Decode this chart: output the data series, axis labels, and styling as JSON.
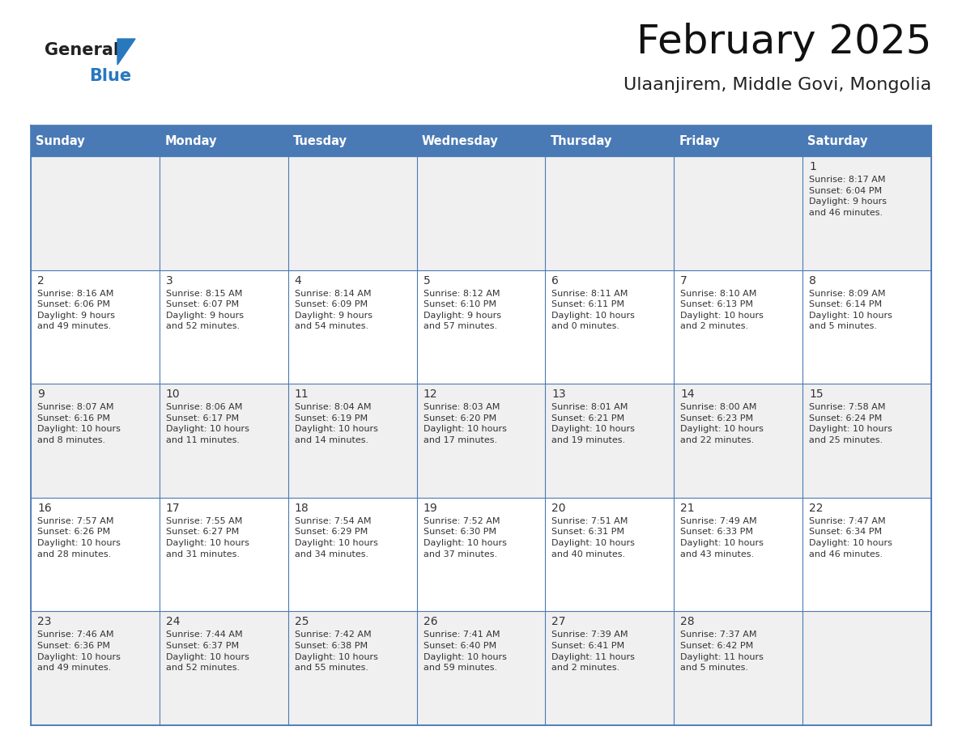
{
  "title": "February 2025",
  "subtitle": "Ulaanjirem, Middle Govi, Mongolia",
  "header_color": "#4a7ab5",
  "header_text_color": "#FFFFFF",
  "row_bg_colors": [
    "#f0f0f0",
    "#ffffff",
    "#f0f0f0",
    "#ffffff",
    "#f0f0f0"
  ],
  "border_color": "#4a7ab5",
  "text_color": "#333333",
  "day_headers": [
    "Sunday",
    "Monday",
    "Tuesday",
    "Wednesday",
    "Thursday",
    "Friday",
    "Saturday"
  ],
  "days": [
    {
      "day": 1,
      "col": 6,
      "row": 0,
      "sunrise": "8:17 AM",
      "sunset": "6:04 PM",
      "daylight": "9 hours\nand 46 minutes."
    },
    {
      "day": 2,
      "col": 0,
      "row": 1,
      "sunrise": "8:16 AM",
      "sunset": "6:06 PM",
      "daylight": "9 hours\nand 49 minutes."
    },
    {
      "day": 3,
      "col": 1,
      "row": 1,
      "sunrise": "8:15 AM",
      "sunset": "6:07 PM",
      "daylight": "9 hours\nand 52 minutes."
    },
    {
      "day": 4,
      "col": 2,
      "row": 1,
      "sunrise": "8:14 AM",
      "sunset": "6:09 PM",
      "daylight": "9 hours\nand 54 minutes."
    },
    {
      "day": 5,
      "col": 3,
      "row": 1,
      "sunrise": "8:12 AM",
      "sunset": "6:10 PM",
      "daylight": "9 hours\nand 57 minutes."
    },
    {
      "day": 6,
      "col": 4,
      "row": 1,
      "sunrise": "8:11 AM",
      "sunset": "6:11 PM",
      "daylight": "10 hours\nand 0 minutes."
    },
    {
      "day": 7,
      "col": 5,
      "row": 1,
      "sunrise": "8:10 AM",
      "sunset": "6:13 PM",
      "daylight": "10 hours\nand 2 minutes."
    },
    {
      "day": 8,
      "col": 6,
      "row": 1,
      "sunrise": "8:09 AM",
      "sunset": "6:14 PM",
      "daylight": "10 hours\nand 5 minutes."
    },
    {
      "day": 9,
      "col": 0,
      "row": 2,
      "sunrise": "8:07 AM",
      "sunset": "6:16 PM",
      "daylight": "10 hours\nand 8 minutes."
    },
    {
      "day": 10,
      "col": 1,
      "row": 2,
      "sunrise": "8:06 AM",
      "sunset": "6:17 PM",
      "daylight": "10 hours\nand 11 minutes."
    },
    {
      "day": 11,
      "col": 2,
      "row": 2,
      "sunrise": "8:04 AM",
      "sunset": "6:19 PM",
      "daylight": "10 hours\nand 14 minutes."
    },
    {
      "day": 12,
      "col": 3,
      "row": 2,
      "sunrise": "8:03 AM",
      "sunset": "6:20 PM",
      "daylight": "10 hours\nand 17 minutes."
    },
    {
      "day": 13,
      "col": 4,
      "row": 2,
      "sunrise": "8:01 AM",
      "sunset": "6:21 PM",
      "daylight": "10 hours\nand 19 minutes."
    },
    {
      "day": 14,
      "col": 5,
      "row": 2,
      "sunrise": "8:00 AM",
      "sunset": "6:23 PM",
      "daylight": "10 hours\nand 22 minutes."
    },
    {
      "day": 15,
      "col": 6,
      "row": 2,
      "sunrise": "7:58 AM",
      "sunset": "6:24 PM",
      "daylight": "10 hours\nand 25 minutes."
    },
    {
      "day": 16,
      "col": 0,
      "row": 3,
      "sunrise": "7:57 AM",
      "sunset": "6:26 PM",
      "daylight": "10 hours\nand 28 minutes."
    },
    {
      "day": 17,
      "col": 1,
      "row": 3,
      "sunrise": "7:55 AM",
      "sunset": "6:27 PM",
      "daylight": "10 hours\nand 31 minutes."
    },
    {
      "day": 18,
      "col": 2,
      "row": 3,
      "sunrise": "7:54 AM",
      "sunset": "6:29 PM",
      "daylight": "10 hours\nand 34 minutes."
    },
    {
      "day": 19,
      "col": 3,
      "row": 3,
      "sunrise": "7:52 AM",
      "sunset": "6:30 PM",
      "daylight": "10 hours\nand 37 minutes."
    },
    {
      "day": 20,
      "col": 4,
      "row": 3,
      "sunrise": "7:51 AM",
      "sunset": "6:31 PM",
      "daylight": "10 hours\nand 40 minutes."
    },
    {
      "day": 21,
      "col": 5,
      "row": 3,
      "sunrise": "7:49 AM",
      "sunset": "6:33 PM",
      "daylight": "10 hours\nand 43 minutes."
    },
    {
      "day": 22,
      "col": 6,
      "row": 3,
      "sunrise": "7:47 AM",
      "sunset": "6:34 PM",
      "daylight": "10 hours\nand 46 minutes."
    },
    {
      "day": 23,
      "col": 0,
      "row": 4,
      "sunrise": "7:46 AM",
      "sunset": "6:36 PM",
      "daylight": "10 hours\nand 49 minutes."
    },
    {
      "day": 24,
      "col": 1,
      "row": 4,
      "sunrise": "7:44 AM",
      "sunset": "6:37 PM",
      "daylight": "10 hours\nand 52 minutes."
    },
    {
      "day": 25,
      "col": 2,
      "row": 4,
      "sunrise": "7:42 AM",
      "sunset": "6:38 PM",
      "daylight": "10 hours\nand 55 minutes."
    },
    {
      "day": 26,
      "col": 3,
      "row": 4,
      "sunrise": "7:41 AM",
      "sunset": "6:40 PM",
      "daylight": "10 hours\nand 59 minutes."
    },
    {
      "day": 27,
      "col": 4,
      "row": 4,
      "sunrise": "7:39 AM",
      "sunset": "6:41 PM",
      "daylight": "11 hours\nand 2 minutes."
    },
    {
      "day": 28,
      "col": 5,
      "row": 4,
      "sunrise": "7:37 AM",
      "sunset": "6:42 PM",
      "daylight": "11 hours\nand 5 minutes."
    }
  ],
  "logo_text_general": "General",
  "logo_text_blue": "Blue",
  "logo_color_general": "#222222",
  "logo_color_blue": "#2878be",
  "logo_triangle_color": "#2878be",
  "fig_width": 11.88,
  "fig_height": 9.18,
  "dpi": 100
}
